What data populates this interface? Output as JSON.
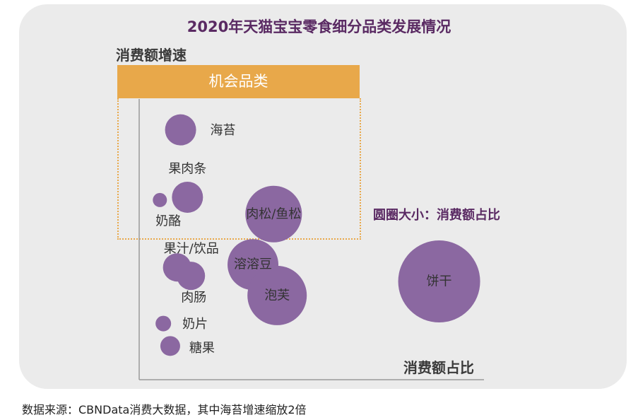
{
  "title": "2020年天猫宝宝零食细分品类发展情况",
  "footer": {
    "source": "数据来源：CBNData消费大数据，其中海苔增速缩放2倍"
  },
  "colors": {
    "bubble": "#8b68a1",
    "highlight": "#e8a84a",
    "title": "#5a2a63",
    "panel": "#ebebeb"
  },
  "opportunity_label": "机会品类",
  "size_note": "圆圈大小：消费额占比",
  "chart_data": {
    "type": "scatter",
    "title": "2020年天猫宝宝零食细分品类发展情况",
    "xlabel": "消费额占比",
    "ylabel": "消费额增速",
    "xlim": [
      0,
      100
    ],
    "ylim": [
      0,
      100
    ],
    "grid": false,
    "bubble_size_meaning": "消费额占比",
    "points": [
      {
        "name": "海苔",
        "x": 12,
        "y": 89,
        "size": 22
      },
      {
        "name": "果肉条",
        "x": 14,
        "y": 65,
        "size": 22
      },
      {
        "name": "奶酪",
        "x": 6,
        "y": 64,
        "size": 10
      },
      {
        "name": "肉松/鱼松",
        "x": 39,
        "y": 59,
        "size": 40
      },
      {
        "name": "果汁/饮品",
        "x": 11,
        "y": 40,
        "size": 20
      },
      {
        "name": "肉肠",
        "x": 15,
        "y": 37,
        "size": 20
      },
      {
        "name": "溶溶豆",
        "x": 33,
        "y": 41,
        "size": 36
      },
      {
        "name": "泡芙",
        "x": 40,
        "y": 30,
        "size": 42
      },
      {
        "name": "饼干",
        "x": 87,
        "y": 35,
        "size": 58
      },
      {
        "name": "奶片",
        "x": 7,
        "y": 20,
        "size": 11
      },
      {
        "name": "糖果",
        "x": 9,
        "y": 12,
        "size": 14
      }
    ]
  }
}
